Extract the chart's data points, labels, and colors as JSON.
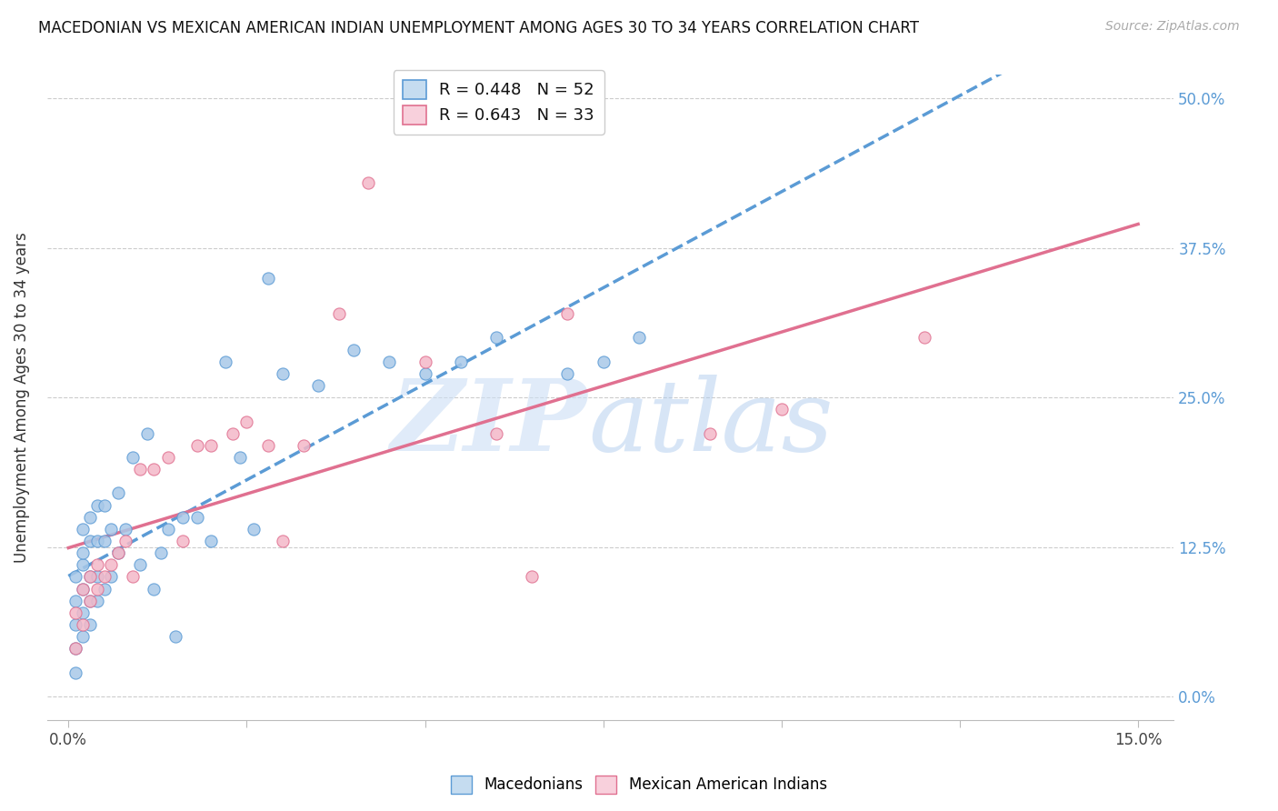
{
  "title": "MACEDONIAN VS MEXICAN AMERICAN INDIAN UNEMPLOYMENT AMONG AGES 30 TO 34 YEARS CORRELATION CHART",
  "source": "Source: ZipAtlas.com",
  "ylabel": "Unemployment Among Ages 30 to 34 years",
  "xlim": [
    0,
    0.15
  ],
  "ylim": [
    -0.01,
    0.52
  ],
  "y_ticks": [
    0,
    0.125,
    0.25,
    0.375,
    0.5
  ],
  "y_tick_labels": [
    "0.0%",
    "12.5%",
    "25.0%",
    "37.5%",
    "50.0%"
  ],
  "x_tick_labels": [
    "0.0%",
    "",
    "",
    "",
    "",
    "",
    "15.0%"
  ],
  "legend_r1": "R = 0.448   N = 52",
  "legend_r2": "R = 0.643   N = 33",
  "blue_scatter": "#a8c8e8",
  "blue_edge": "#5b9bd5",
  "pink_scatter": "#f4b8c8",
  "pink_edge": "#e07090",
  "blue_line_color": "#5b9bd5",
  "pink_line_color": "#e07090",
  "macedonian_x": [
    0.001,
    0.001,
    0.001,
    0.001,
    0.001,
    0.002,
    0.002,
    0.002,
    0.002,
    0.002,
    0.002,
    0.003,
    0.003,
    0.003,
    0.003,
    0.003,
    0.004,
    0.004,
    0.004,
    0.004,
    0.005,
    0.005,
    0.005,
    0.006,
    0.006,
    0.007,
    0.007,
    0.008,
    0.009,
    0.01,
    0.011,
    0.012,
    0.013,
    0.014,
    0.015,
    0.016,
    0.018,
    0.02,
    0.022,
    0.024,
    0.026,
    0.028,
    0.03,
    0.035,
    0.04,
    0.045,
    0.05,
    0.055,
    0.06,
    0.07,
    0.075,
    0.08
  ],
  "macedonian_y": [
    0.02,
    0.04,
    0.06,
    0.08,
    0.1,
    0.05,
    0.07,
    0.09,
    0.11,
    0.12,
    0.14,
    0.06,
    0.08,
    0.1,
    0.13,
    0.15,
    0.08,
    0.1,
    0.13,
    0.16,
    0.09,
    0.13,
    0.16,
    0.1,
    0.14,
    0.12,
    0.17,
    0.14,
    0.2,
    0.11,
    0.22,
    0.09,
    0.12,
    0.14,
    0.05,
    0.15,
    0.15,
    0.13,
    0.28,
    0.2,
    0.14,
    0.35,
    0.27,
    0.26,
    0.29,
    0.28,
    0.27,
    0.28,
    0.3,
    0.27,
    0.28,
    0.3
  ],
  "mexican_x": [
    0.001,
    0.001,
    0.002,
    0.002,
    0.003,
    0.003,
    0.004,
    0.004,
    0.005,
    0.006,
    0.007,
    0.008,
    0.009,
    0.01,
    0.012,
    0.014,
    0.016,
    0.018,
    0.02,
    0.023,
    0.025,
    0.028,
    0.03,
    0.033,
    0.038,
    0.042,
    0.05,
    0.06,
    0.065,
    0.07,
    0.09,
    0.1,
    0.12
  ],
  "mexican_y": [
    0.04,
    0.07,
    0.06,
    0.09,
    0.08,
    0.1,
    0.09,
    0.11,
    0.1,
    0.11,
    0.12,
    0.13,
    0.1,
    0.19,
    0.19,
    0.2,
    0.13,
    0.21,
    0.21,
    0.22,
    0.23,
    0.21,
    0.13,
    0.21,
    0.32,
    0.43,
    0.28,
    0.22,
    0.1,
    0.32,
    0.22,
    0.24,
    0.3
  ]
}
